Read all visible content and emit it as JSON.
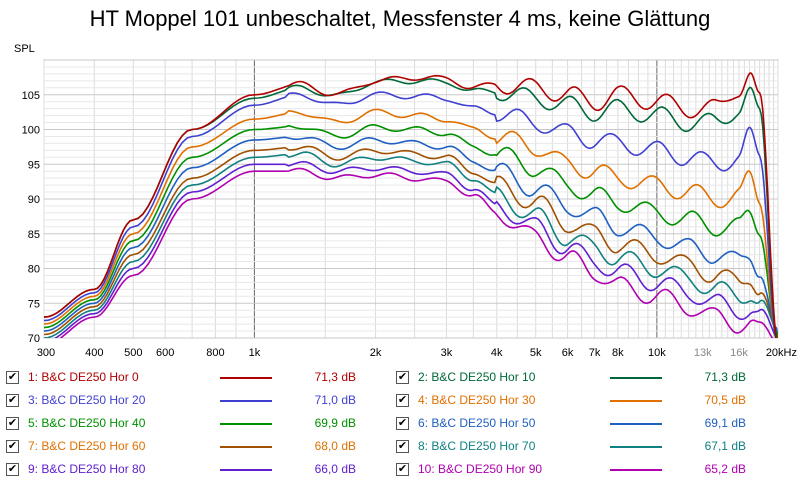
{
  "chart_data": {
    "type": "line",
    "title": "HT Moppel 101 unbeschaltet, Messfenster 4 ms, keine Glättung",
    "ylabel": "SPL",
    "x_scale": "log",
    "xlim": [
      300,
      20000
    ],
    "ylim": [
      70,
      110
    ],
    "grid": true,
    "x_ticks": [
      {
        "value": 300,
        "label": "300"
      },
      {
        "value": 400,
        "label": "400"
      },
      {
        "value": 500,
        "label": "500"
      },
      {
        "value": 600,
        "label": "600"
      },
      {
        "value": 800,
        "label": "800"
      },
      {
        "value": 1000,
        "label": "1k"
      },
      {
        "value": 2000,
        "label": "2k"
      },
      {
        "value": 3000,
        "label": "3k"
      },
      {
        "value": 4000,
        "label": "4k"
      },
      {
        "value": 5000,
        "label": "5k"
      },
      {
        "value": 6000,
        "label": "6k"
      },
      {
        "value": 7000,
        "label": "7k"
      },
      {
        "value": 8000,
        "label": "8k"
      },
      {
        "value": 10000,
        "label": "10k"
      },
      {
        "value": 13000,
        "label": "13k"
      },
      {
        "value": 16000,
        "label": "16k"
      },
      {
        "value": 20000,
        "label": "20kHz"
      }
    ],
    "y_ticks": [
      {
        "value": 70,
        "label": "70"
      },
      {
        "value": 75,
        "label": "75"
      },
      {
        "value": 80,
        "label": "80"
      },
      {
        "value": 85,
        "label": "85"
      },
      {
        "value": 90,
        "label": "90"
      },
      {
        "value": 95,
        "label": "95"
      },
      {
        "value": 100,
        "label": "100"
      },
      {
        "value": 105,
        "label": "105"
      }
    ],
    "x": [
      300,
      400,
      500,
      700,
      1000,
      1300,
      1600,
      2000,
      2500,
      3000,
      3500,
      4000,
      5000,
      6000,
      7000,
      8000,
      10000,
      12000,
      14000,
      16000,
      17000,
      18000,
      20000
    ],
    "series": [
      {
        "name": "1: B&C DE250 Hor 0",
        "value_label": "71,3 dB",
        "color": "#b00000",
        "text_color": "#b00000",
        "values": [
          73,
          77,
          87,
          100,
          105,
          106.5,
          105,
          107,
          107.5,
          107.3,
          106,
          106.5,
          106,
          105,
          104,
          105,
          104,
          103,
          103,
          106,
          107.8,
          104,
          70
        ]
      },
      {
        "name": "2: B&C DE250 Hor 10",
        "value_label": "71,3 dB",
        "color": "#006838",
        "text_color": "#006838",
        "values": [
          73,
          77,
          87,
          100,
          104.5,
          106,
          104.8,
          106.8,
          107,
          106.8,
          105.5,
          105.5,
          104.5,
          103.5,
          102.5,
          103,
          102,
          101,
          101,
          103,
          105,
          102,
          70
        ]
      },
      {
        "name": "3: B&C DE250 Hor 20",
        "value_label": "71,0 dB",
        "color": "#4040d0",
        "text_color": "#4040d0",
        "values": [
          72.5,
          76.5,
          86,
          99,
          103.5,
          105,
          103.5,
          105,
          104.8,
          104.5,
          103,
          102.5,
          101,
          99.5,
          98.5,
          98,
          97,
          96,
          95,
          96,
          99,
          96,
          70
        ]
      },
      {
        "name": "4: B&C DE250 Hor 30",
        "value_label": "70,5 dB",
        "color": "#e07000",
        "text_color": "#e07000",
        "values": [
          72,
          76,
          85,
          97.5,
          101.5,
          102.5,
          101,
          102.5,
          102,
          101.5,
          100,
          99,
          97.5,
          95,
          94,
          93,
          92,
          91,
          90,
          90.5,
          93,
          90,
          70
        ]
      },
      {
        "name": "5: B&C DE250 Hor 40",
        "value_label": "69,9 dB",
        "color": "#009000",
        "text_color": "#009000",
        "values": [
          71.5,
          75.5,
          84,
          96,
          100,
          100.5,
          99,
          100.3,
          100,
          99.5,
          97.5,
          96.5,
          94.5,
          92,
          90.5,
          89.5,
          88,
          87,
          86,
          86,
          88,
          86,
          70
        ]
      },
      {
        "name": "6: B&C DE250 Hor 50",
        "value_label": "69,1 dB",
        "color": "#2060c0",
        "text_color": "#2060c0",
        "values": [
          71,
          75,
          83,
          94.5,
          98.5,
          99,
          97.5,
          98.5,
          98,
          97.5,
          95.5,
          94,
          91.5,
          89,
          87.5,
          86,
          84.5,
          83,
          82,
          81,
          82,
          80,
          70
        ]
      },
      {
        "name": "7: B&C DE250 Hor 60",
        "value_label": "68,0 dB",
        "color": "#a05000",
        "text_color": "#e07000",
        "values": [
          70.5,
          74.5,
          82,
          93,
          97,
          97.5,
          96,
          97,
          96.5,
          96,
          94,
          92,
          89.5,
          86.5,
          85,
          83.5,
          82,
          80.5,
          79,
          78,
          79,
          77,
          70
        ]
      },
      {
        "name": "8: B&C DE250 Hor 70",
        "value_label": "67,1 dB",
        "color": "#108080",
        "text_color": "#108080",
        "values": [
          70,
          74,
          81,
          92,
          96,
          96.5,
          95,
          96,
          95.5,
          95,
          93,
          90.5,
          87.5,
          84.5,
          83,
          81.5,
          80,
          78.5,
          77,
          76,
          76.5,
          75,
          70
        ]
      },
      {
        "name": "9: B&C DE250 Hor 80",
        "value_label": "66,0 dB",
        "color": "#6020d0",
        "text_color": "#6020d0",
        "values": [
          69.5,
          73.5,
          80,
          91,
          95,
          95,
          94,
          94.5,
          94,
          93.5,
          91.5,
          89,
          86,
          83,
          81,
          79.5,
          78,
          76.5,
          75,
          74,
          74,
          73,
          70
        ]
      },
      {
        "name": "10: B&C DE250 Hor 90",
        "value_label": "65,2 dB",
        "color": "#b000b0",
        "text_color": "#b000b0",
        "values": [
          69,
          73,
          79,
          90,
          94,
          94,
          93,
          93.5,
          93,
          92.5,
          90.5,
          88,
          84.5,
          81.5,
          79.5,
          77.5,
          76,
          74.5,
          73,
          72,
          72,
          71,
          70
        ]
      }
    ]
  },
  "legend": {
    "items": [
      {
        "checked": true,
        "name": "1: B&C DE250 Hor 0",
        "value": "71,3 dB"
      },
      {
        "checked": true,
        "name": "2: B&C DE250 Hor 10",
        "value": "71,3 dB"
      },
      {
        "checked": true,
        "name": "3: B&C DE250 Hor 20",
        "value": "71,0 dB"
      },
      {
        "checked": true,
        "name": "4: B&C DE250 Hor 30",
        "value": "70,5 dB"
      },
      {
        "checked": true,
        "name": "5: B&C DE250 Hor 40",
        "value": "69,9 dB"
      },
      {
        "checked": true,
        "name": "6: B&C DE250 Hor 50",
        "value": "69,1 dB"
      },
      {
        "checked": true,
        "name": "7: B&C DE250 Hor 60",
        "value": "68,0 dB"
      },
      {
        "checked": true,
        "name": "8: B&C DE250 Hor 70",
        "value": "67,1 dB"
      },
      {
        "checked": true,
        "name": "9: B&C DE250 Hor 80",
        "value": "66,0 dB"
      },
      {
        "checked": true,
        "name": "10: B&C DE250 Hor 90",
        "value": "65,2 dB"
      }
    ]
  }
}
